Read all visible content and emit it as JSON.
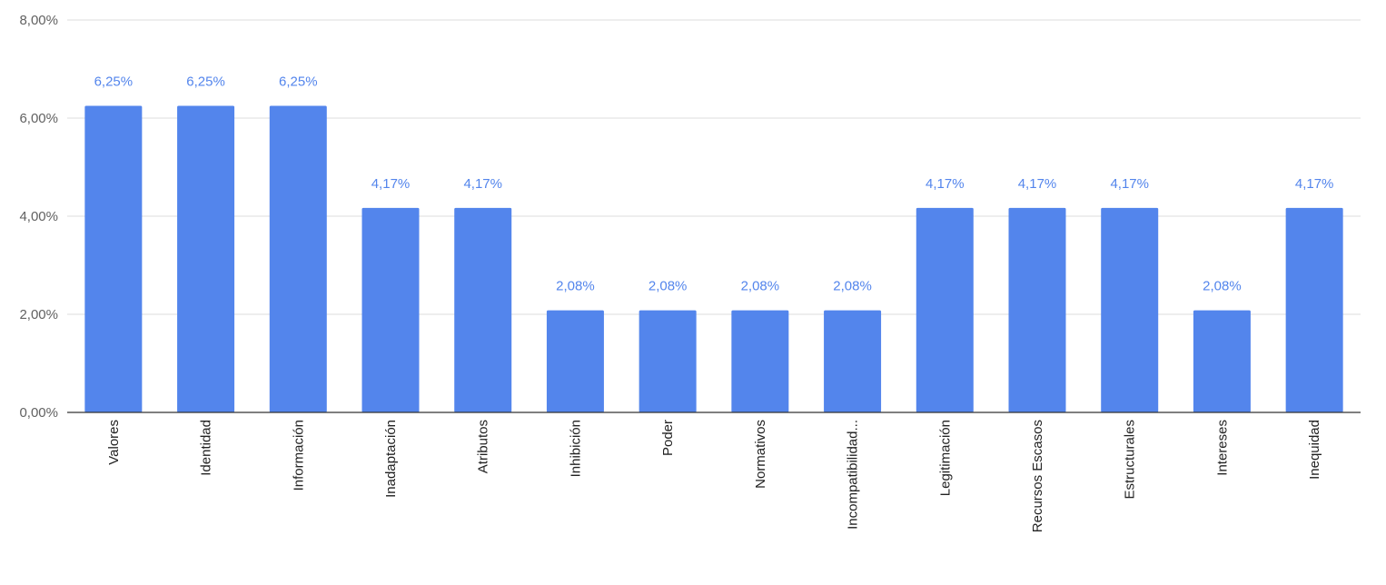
{
  "chart_data": {
    "type": "bar",
    "title": "",
    "xlabel": "",
    "ylabel": "",
    "categories": [
      "Valores",
      "Identidad",
      "Información",
      "Inadaptación",
      "Atributos",
      "Inhibición",
      "Poder",
      "Normativos",
      "Incompatibilidad...",
      "Legitimación",
      "Recursos Escasos",
      "Estructurales",
      "Intereses",
      "Inequidad"
    ],
    "values": [
      6.25,
      6.25,
      6.25,
      4.17,
      4.17,
      2.08,
      2.08,
      2.08,
      2.08,
      4.17,
      4.17,
      4.17,
      2.08,
      4.17
    ],
    "data_labels": [
      "6,25%",
      "6,25%",
      "6,25%",
      "4,17%",
      "4,17%",
      "2,08%",
      "2,08%",
      "2,08%",
      "2,08%",
      "4,17%",
      "4,17%",
      "4,17%",
      "2,08%",
      "4,17%"
    ],
    "ylim": [
      0,
      8
    ],
    "yticks": [
      0,
      2,
      4,
      6,
      8
    ],
    "ytick_labels": [
      "0,00%",
      "2,00%",
      "4,00%",
      "6,00%",
      "8,00%"
    ],
    "grid": true,
    "legend": "none",
    "colors": {
      "bar": "#5385EC",
      "data_label": "#5385EC",
      "grid": "#DDDDDD",
      "axis": "#333333"
    }
  }
}
